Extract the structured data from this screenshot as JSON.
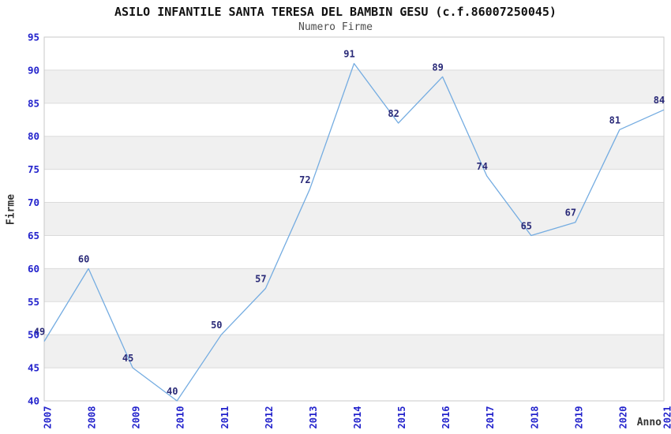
{
  "header": {
    "title": "ASILO INFANTILE SANTA TERESA DEL BAMBIN GESU (c.f.86007250045)",
    "subtitle": "Numero Firme"
  },
  "chart_data": {
    "type": "line",
    "title": "ASILO INFANTILE SANTA TERESA DEL BAMBIN GESU (c.f.86007250045)",
    "subtitle": "Numero Firme",
    "xlabel": "Anno",
    "ylabel": "Firme",
    "categories": [
      "2007",
      "2008",
      "2009",
      "2010",
      "2011",
      "2012",
      "2013",
      "2014",
      "2015",
      "2016",
      "2017",
      "2018",
      "2019",
      "2020",
      "2021"
    ],
    "values": [
      49,
      60,
      45,
      40,
      50,
      57,
      72,
      91,
      82,
      89,
      74,
      65,
      67,
      81,
      84
    ],
    "ylim": [
      40,
      95
    ],
    "ytick_step": 5,
    "grid": true,
    "legend": "none",
    "band_fill_ranges": [
      [
        45,
        50
      ],
      [
        55,
        60
      ],
      [
        65,
        70
      ],
      [
        75,
        80
      ],
      [
        85,
        90
      ]
    ],
    "colors": {
      "line": "#74ACE1",
      "tick_label": "#2323CC",
      "data_label": "#2A2A78",
      "band": "#F0F0F0",
      "gridline": "#DBDBDB",
      "border": "#C9C9C9",
      "title": "#111111",
      "subtitle": "#4D4D4D",
      "axis_title": "#333333",
      "background": "#FFFFFF"
    }
  }
}
